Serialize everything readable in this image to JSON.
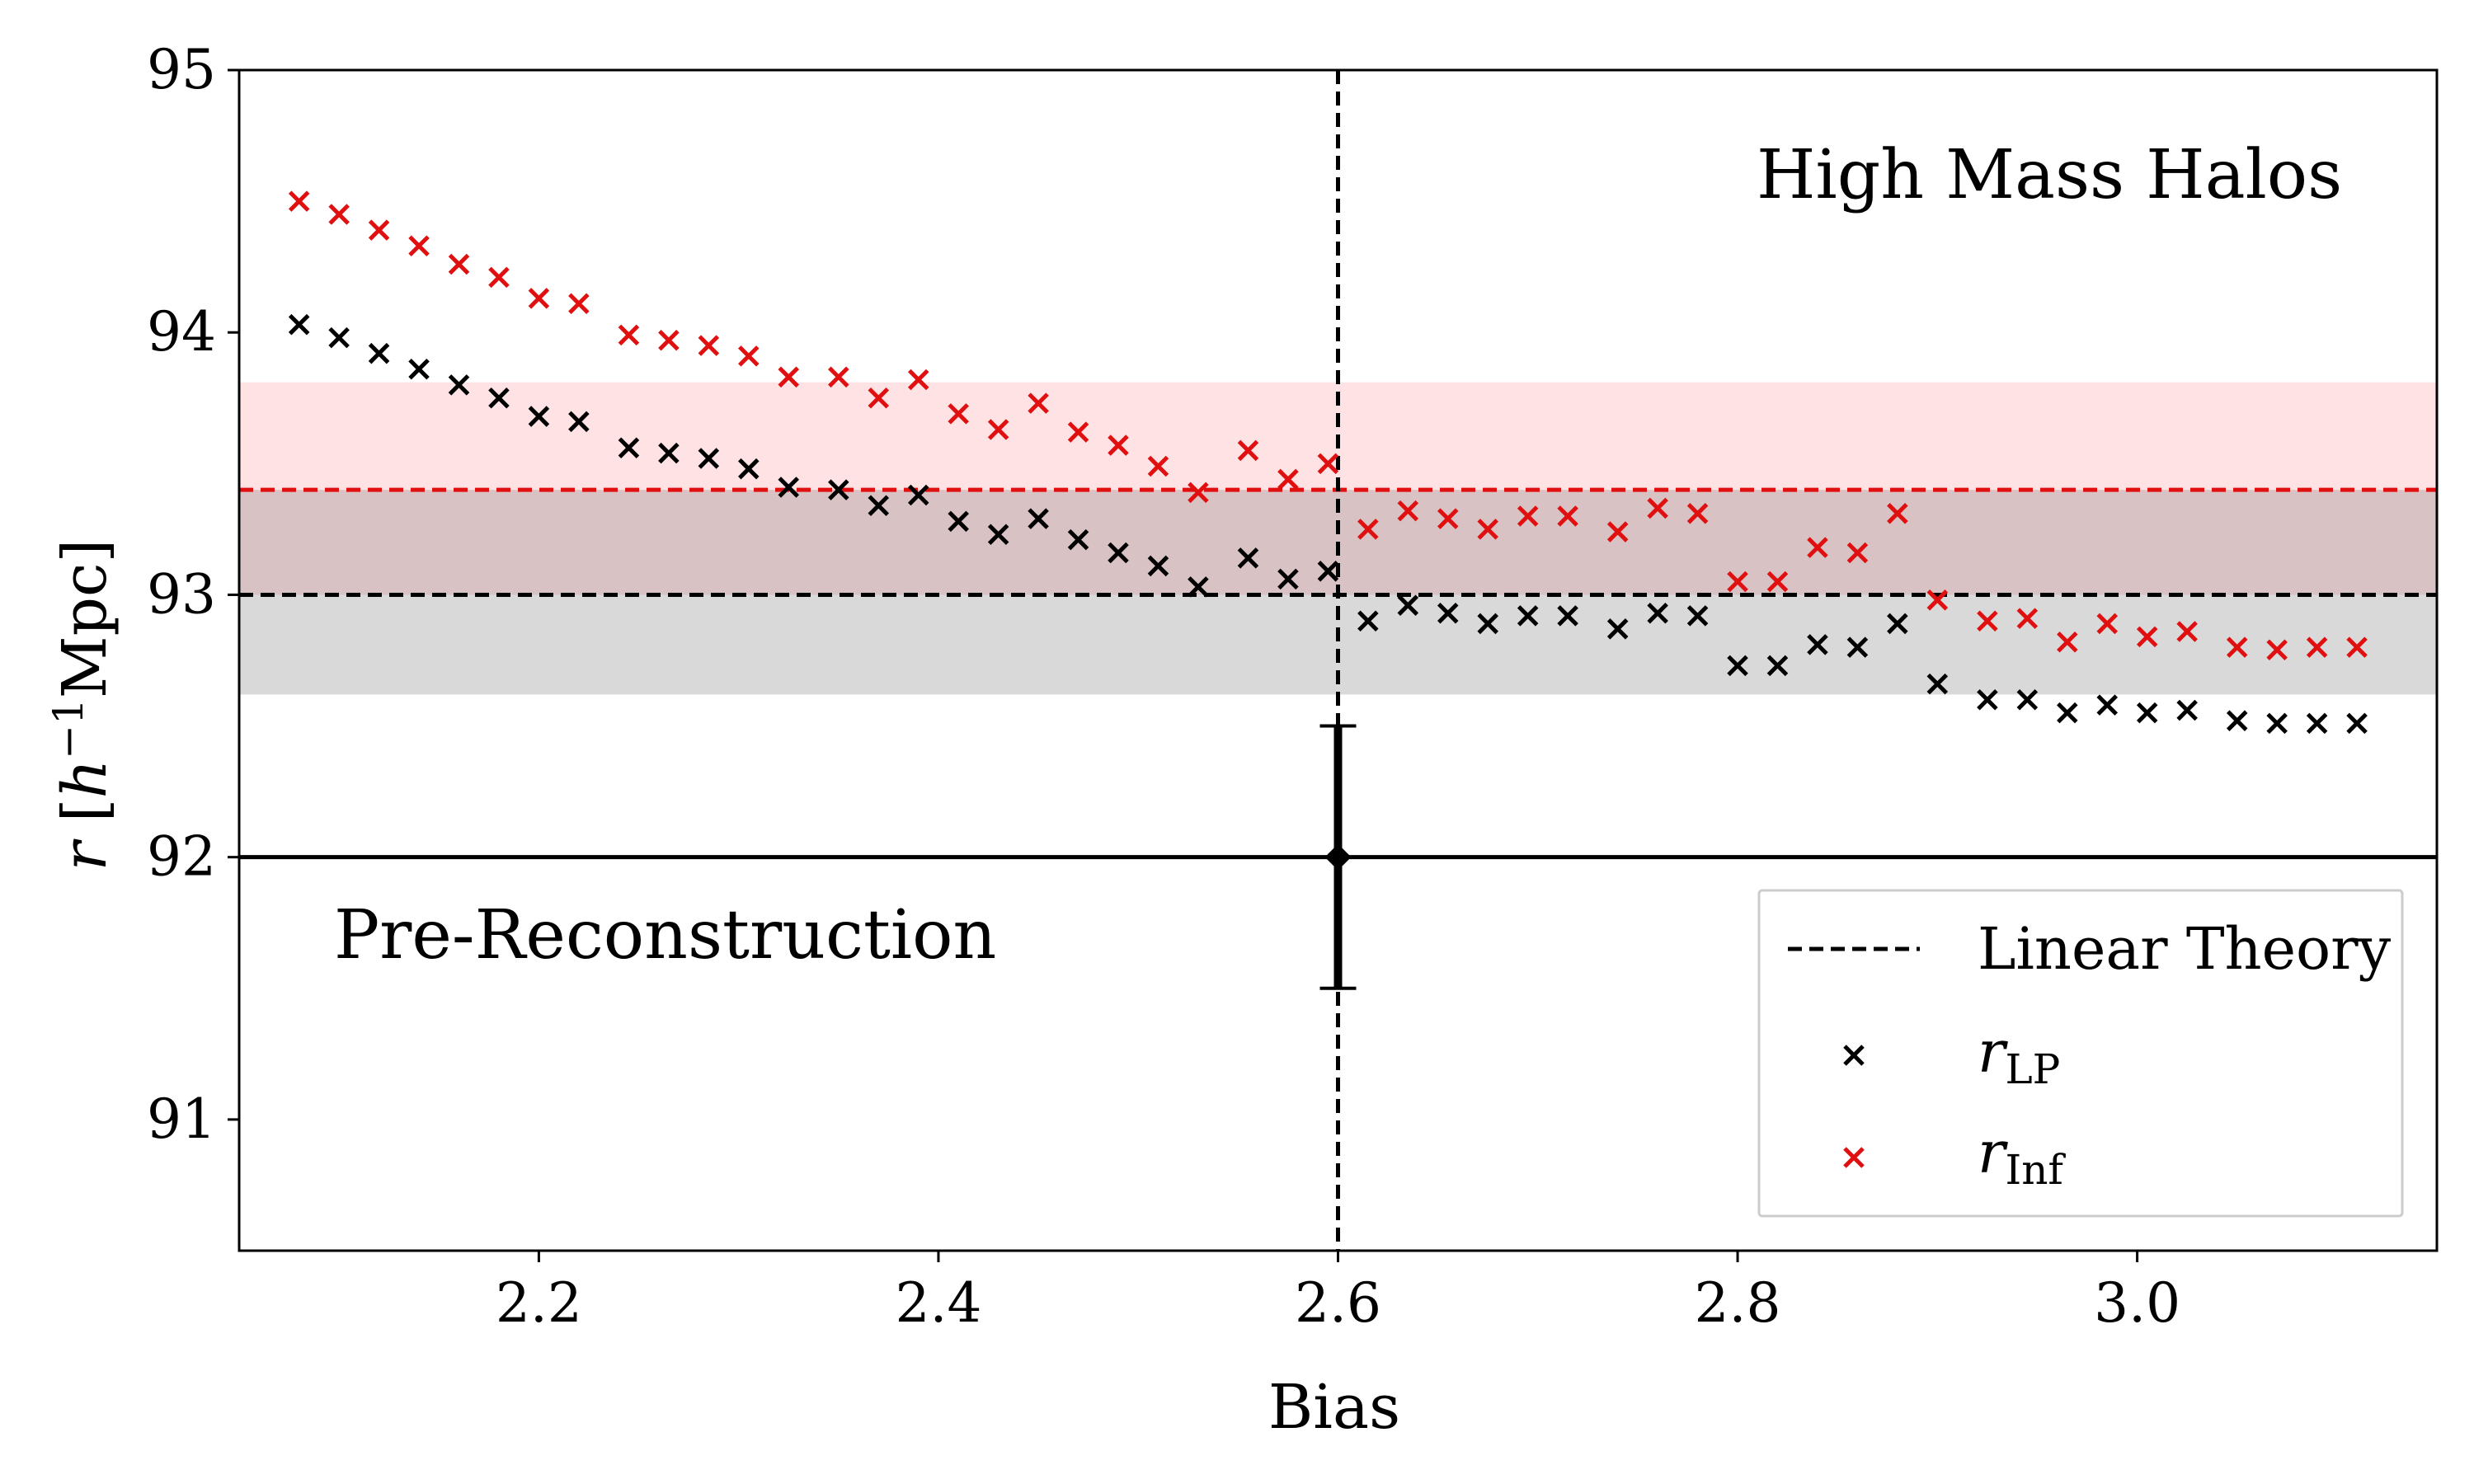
{
  "chart_data": {
    "type": "scatter",
    "title": "",
    "xlabel": "Bias",
    "ylabel": "r [h⁻¹Mpc]",
    "xlim": [
      2.05,
      3.15
    ],
    "ylim": [
      90.5,
      95.0
    ],
    "xticks": [
      2.2,
      2.4,
      2.6,
      2.8,
      3.0
    ],
    "xtick_labels": [
      "2.2",
      "2.4",
      "2.6",
      "2.8",
      "3.0"
    ],
    "yticks": [
      91,
      92,
      93,
      94,
      95
    ],
    "ytick_labels": [
      "91",
      "92",
      "93",
      "94",
      "95"
    ],
    "grid": false,
    "annotations": {
      "top_right": "High Mass Halos",
      "bottom_left": "Pre-Reconstruction"
    },
    "reference_lines": {
      "pre_reconstruction": 92.0,
      "linear_theory_black": 93.0,
      "linear_theory_red": 93.4,
      "vertical_bias": 2.6
    },
    "bands": {
      "black": [
        92.62,
        93.4
      ],
      "red": [
        93.4,
        93.81
      ]
    },
    "errorbar": {
      "x": 2.6,
      "y": 92.0,
      "ylow": 91.5,
      "yhigh": 92.5
    },
    "legend": {
      "placement": "lower-right",
      "items": [
        {
          "label": "Linear Theory",
          "kind": "dashed-line"
        },
        {
          "label": "r",
          "subscript": "LP",
          "kind": "marker",
          "color": "#000000"
        },
        {
          "label": "r",
          "subscript": "Inf",
          "kind": "marker",
          "color": "#e01010"
        }
      ]
    },
    "series": [
      {
        "name": "r_LP",
        "color": "#000000",
        "x": [
          2.08,
          2.1,
          2.12,
          2.14,
          2.16,
          2.18,
          2.2,
          2.22,
          2.245,
          2.265,
          2.285,
          2.305,
          2.325,
          2.35,
          2.37,
          2.39,
          2.41,
          2.43,
          2.45,
          2.47,
          2.49,
          2.51,
          2.53,
          2.555,
          2.575,
          2.595,
          2.615,
          2.635,
          2.655,
          2.675,
          2.695,
          2.715,
          2.74,
          2.76,
          2.78,
          2.8,
          2.82,
          2.84,
          2.86,
          2.88,
          2.9,
          2.925,
          2.945,
          2.965,
          2.985,
          3.005,
          3.025,
          3.05,
          3.07,
          3.09,
          3.11
        ],
        "values": [
          94.03,
          93.98,
          93.92,
          93.86,
          93.8,
          93.75,
          93.68,
          93.66,
          93.56,
          93.54,
          93.52,
          93.48,
          93.41,
          93.4,
          93.34,
          93.38,
          93.28,
          93.23,
          93.29,
          93.21,
          93.16,
          93.11,
          93.03,
          93.14,
          93.06,
          93.09,
          92.9,
          92.96,
          92.93,
          92.89,
          92.92,
          92.92,
          92.87,
          92.93,
          92.92,
          92.73,
          92.73,
          92.81,
          92.8,
          92.89,
          92.66,
          92.6,
          92.6,
          92.55,
          92.58,
          92.55,
          92.56,
          92.52,
          92.51,
          92.51,
          92.51
        ]
      },
      {
        "name": "r_Inf",
        "color": "#e01010",
        "x": [
          2.08,
          2.1,
          2.12,
          2.14,
          2.16,
          2.18,
          2.2,
          2.22,
          2.245,
          2.265,
          2.285,
          2.305,
          2.325,
          2.35,
          2.37,
          2.39,
          2.41,
          2.43,
          2.45,
          2.47,
          2.49,
          2.51,
          2.53,
          2.555,
          2.575,
          2.595,
          2.615,
          2.635,
          2.655,
          2.675,
          2.695,
          2.715,
          2.74,
          2.76,
          2.78,
          2.8,
          2.82,
          2.84,
          2.86,
          2.88,
          2.9,
          2.925,
          2.945,
          2.965,
          2.985,
          3.005,
          3.025,
          3.05,
          3.07,
          3.09,
          3.11
        ],
        "values": [
          94.5,
          94.45,
          94.39,
          94.33,
          94.26,
          94.21,
          94.13,
          94.11,
          93.99,
          93.97,
          93.95,
          93.91,
          93.83,
          93.83,
          93.75,
          93.82,
          93.69,
          93.63,
          93.73,
          93.62,
          93.57,
          93.49,
          93.39,
          93.55,
          93.44,
          93.5,
          93.25,
          93.32,
          93.29,
          93.25,
          93.3,
          93.3,
          93.24,
          93.33,
          93.31,
          93.05,
          93.05,
          93.18,
          93.16,
          93.31,
          92.98,
          92.9,
          92.91,
          92.82,
          92.89,
          92.84,
          92.86,
          92.8,
          92.79,
          92.8,
          92.8
        ]
      }
    ]
  }
}
